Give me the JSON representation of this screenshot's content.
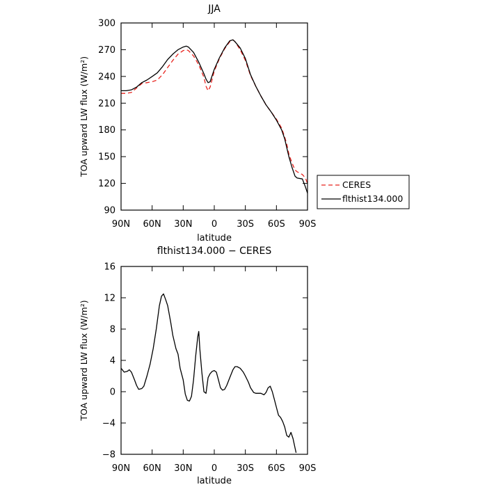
{
  "chart_data": [
    {
      "type": "line",
      "title": "JJA",
      "xlabel": "latitude",
      "ylabel": "TOA upward LW flux (W/m²)",
      "ylim": [
        90,
        300
      ],
      "xlim": [
        90,
        -90
      ],
      "x_ticks": [
        90,
        60,
        30,
        0,
        -30,
        -60,
        -90
      ],
      "x_tick_labels": [
        "90N",
        "60N",
        "30N",
        "0",
        "30S",
        "60S",
        "90S"
      ],
      "y_ticks": [
        90,
        120,
        150,
        180,
        210,
        240,
        270,
        300
      ],
      "y_tick_labels": [
        "90",
        "120",
        "150",
        "180",
        "210",
        "240",
        "270",
        "300"
      ],
      "grid": false,
      "legend_position": "outside-right",
      "series": [
        {
          "name": "CERES",
          "color": "#e8231e",
          "dash": true,
          "points": [
            [
              90,
              221
            ],
            [
              85,
              221
            ],
            [
              80,
              222
            ],
            [
              75,
              227
            ],
            [
              70,
              232
            ],
            [
              65,
              233
            ],
            [
              60,
              234
            ],
            [
              55,
              236
            ],
            [
              50,
              242
            ],
            [
              45,
              250
            ],
            [
              40,
              258
            ],
            [
              35,
              265
            ],
            [
              30,
              269
            ],
            [
              27,
              270
            ],
            [
              25,
              269
            ],
            [
              20,
              263
            ],
            [
              15,
              253
            ],
            [
              10,
              239
            ],
            [
              8,
              229
            ],
            [
              6,
              224
            ],
            [
              4,
              228
            ],
            [
              0,
              246
            ],
            [
              -5,
              260
            ],
            [
              -10,
              271
            ],
            [
              -15,
              279
            ],
            [
              -18,
              281
            ],
            [
              -20,
              279
            ],
            [
              -25,
              270
            ],
            [
              -30,
              258
            ],
            [
              -35,
              241
            ],
            [
              -40,
              229
            ],
            [
              -45,
              218
            ],
            [
              -50,
              208
            ],
            [
              -55,
              200
            ],
            [
              -60,
              192
            ],
            [
              -65,
              182
            ],
            [
              -68,
              172
            ],
            [
              -70,
              164
            ],
            [
              -72,
              153
            ],
            [
              -75,
              143
            ],
            [
              -78,
              135
            ],
            [
              -80,
              133
            ],
            [
              -85,
              130
            ],
            [
              -88,
              126
            ],
            [
              -90,
              120
            ]
          ]
        },
        {
          "name": "flthist134.000",
          "color": "#000000",
          "dash": false,
          "points": [
            [
              90,
              224
            ],
            [
              85,
              224
            ],
            [
              80,
              225
            ],
            [
              75,
              228
            ],
            [
              70,
              233
            ],
            [
              65,
              236
            ],
            [
              60,
              240
            ],
            [
              55,
              244
            ],
            [
              50,
              251
            ],
            [
              45,
              259
            ],
            [
              40,
              265
            ],
            [
              35,
              270
            ],
            [
              30,
              273
            ],
            [
              27,
              274
            ],
            [
              25,
              273
            ],
            [
              20,
              267
            ],
            [
              15,
              256
            ],
            [
              10,
              243
            ],
            [
              8,
              237
            ],
            [
              6,
              233
            ],
            [
              4,
              234
            ],
            [
              0,
              248
            ],
            [
              -5,
              261
            ],
            [
              -10,
              272
            ],
            [
              -15,
              280
            ],
            [
              -18,
              281
            ],
            [
              -20,
              279
            ],
            [
              -25,
              272
            ],
            [
              -30,
              260
            ],
            [
              -35,
              242
            ],
            [
              -40,
              229
            ],
            [
              -45,
              218
            ],
            [
              -50,
              208
            ],
            [
              -55,
              200
            ],
            [
              -60,
              191
            ],
            [
              -65,
              180
            ],
            [
              -68,
              170
            ],
            [
              -70,
              160
            ],
            [
              -72,
              150
            ],
            [
              -75,
              138
            ],
            [
              -78,
              128
            ],
            [
              -80,
              126
            ],
            [
              -85,
              125
            ],
            [
              -88,
              116
            ],
            [
              -90,
              109
            ]
          ]
        }
      ]
    },
    {
      "type": "line",
      "title": "flthist134.000 − CERES",
      "xlabel": "latitude",
      "ylabel": "TOA upward LW flux (W/m²)",
      "ylim": [
        -8,
        16
      ],
      "xlim": [
        90,
        -90
      ],
      "x_ticks": [
        90,
        60,
        30,
        0,
        -30,
        -60,
        -90
      ],
      "x_tick_labels": [
        "90N",
        "60N",
        "30N",
        "0",
        "30S",
        "60S",
        "90S"
      ],
      "y_ticks": [
        -8,
        -4,
        0,
        4,
        8,
        12,
        16
      ],
      "y_tick_labels": [
        "−8",
        "−4",
        "0",
        "4",
        "8",
        "12",
        "16"
      ],
      "grid": false,
      "series": [
        {
          "color": "#000000",
          "dash": false,
          "points": [
            [
              90,
              3.0
            ],
            [
              87,
              2.5
            ],
            [
              84,
              2.6
            ],
            [
              82,
              2.8
            ],
            [
              80,
              2.5
            ],
            [
              77,
              1.5
            ],
            [
              75,
              0.8
            ],
            [
              73,
              0.3
            ],
            [
              70,
              0.4
            ],
            [
              68,
              0.7
            ],
            [
              65,
              2.0
            ],
            [
              62,
              3.5
            ],
            [
              59,
              5.5
            ],
            [
              56,
              8.0
            ],
            [
              53,
              11.0
            ],
            [
              51,
              12.2
            ],
            [
              49,
              12.5
            ],
            [
              47,
              11.8
            ],
            [
              45,
              11.0
            ],
            [
              42,
              8.8
            ],
            [
              40,
              7.2
            ],
            [
              37,
              5.5
            ],
            [
              35,
              4.8
            ],
            [
              33,
              3.0
            ],
            [
              30,
              1.5
            ],
            [
              28,
              -0.3
            ],
            [
              26,
              -1.1
            ],
            [
              24,
              -1.2
            ],
            [
              22,
              -0.6
            ],
            [
              20,
              1.5
            ],
            [
              18,
              4.5
            ],
            [
              16,
              7.0
            ],
            [
              15,
              7.7
            ],
            [
              14,
              5.5
            ],
            [
              12,
              2.5
            ],
            [
              10,
              0.0
            ],
            [
              8,
              -0.2
            ],
            [
              6,
              1.8
            ],
            [
              4,
              2.3
            ],
            [
              2,
              2.6
            ],
            [
              0,
              2.7
            ],
            [
              -2,
              2.5
            ],
            [
              -4,
              1.5
            ],
            [
              -6,
              0.5
            ],
            [
              -8,
              0.2
            ],
            [
              -10,
              0.3
            ],
            [
              -12,
              0.8
            ],
            [
              -15,
              1.8
            ],
            [
              -18,
              2.8
            ],
            [
              -20,
              3.2
            ],
            [
              -22,
              3.2
            ],
            [
              -25,
              3.0
            ],
            [
              -28,
              2.5
            ],
            [
              -30,
              2.0
            ],
            [
              -33,
              1.2
            ],
            [
              -35,
              0.5
            ],
            [
              -38,
              -0.1
            ],
            [
              -40,
              -0.2
            ],
            [
              -43,
              -0.2
            ],
            [
              -45,
              -0.2
            ],
            [
              -48,
              -0.4
            ],
            [
              -50,
              -0.1
            ],
            [
              -52,
              0.5
            ],
            [
              -54,
              0.7
            ],
            [
              -56,
              0.0
            ],
            [
              -58,
              -1.0
            ],
            [
              -60,
              -2.0
            ],
            [
              -62,
              -3.0
            ],
            [
              -64,
              -3.3
            ],
            [
              -66,
              -3.8
            ],
            [
              -68,
              -4.5
            ],
            [
              -70,
              -5.6
            ],
            [
              -72,
              -5.8
            ],
            [
              -74,
              -5.2
            ],
            [
              -76,
              -6.0
            ],
            [
              -78,
              -7.2
            ],
            [
              -79,
              -7.8
            ]
          ]
        }
      ]
    }
  ]
}
